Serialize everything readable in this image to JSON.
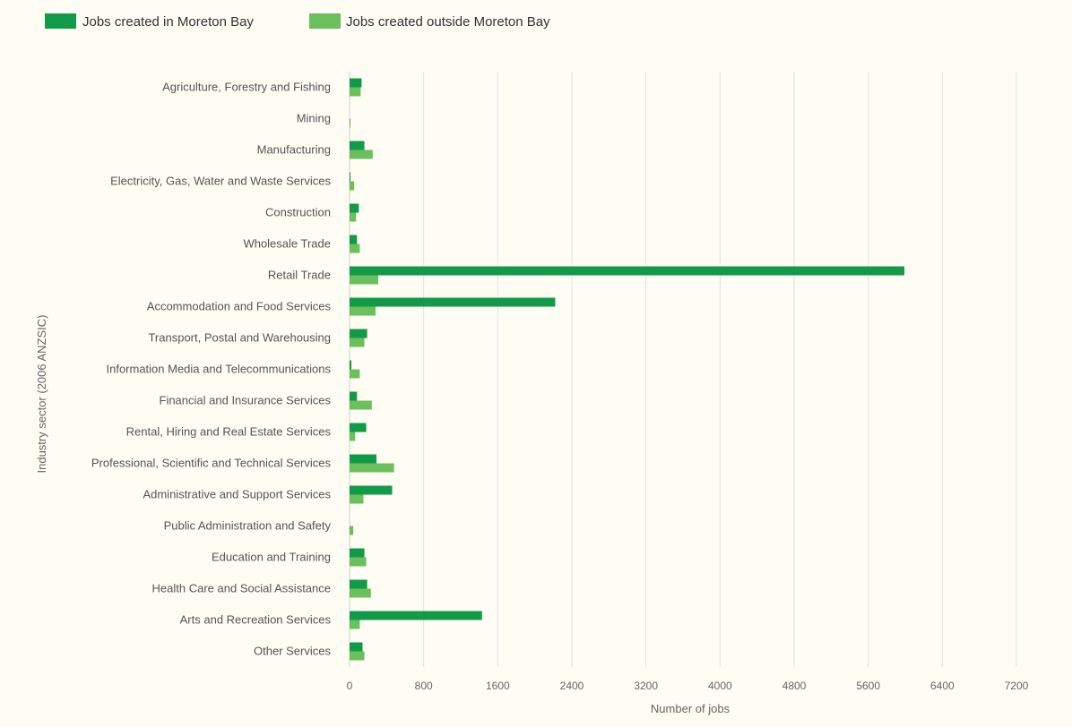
{
  "chart_data": {
    "type": "bar",
    "orientation": "horizontal",
    "xlabel": "Number of jobs",
    "ylabel": "Industry sector (2006 ANZSIC)",
    "xlim": [
      0,
      7200
    ],
    "xticks": [
      0,
      800,
      1600,
      2400,
      3200,
      4000,
      4800,
      5600,
      6400,
      7200
    ],
    "grid": true,
    "legend_position": "top-left",
    "categories": [
      "Agriculture, Forestry and Fishing",
      "Mining",
      "Manufacturing",
      "Electricity, Gas, Water and Waste Services",
      "Construction",
      "Wholesale Trade",
      "Retail Trade",
      "Accommodation and Food Services",
      "Transport, Postal and Warehousing",
      "Information Media and Telecommunications",
      "Financial and Insurance Services",
      "Rental, Hiring and Real Estate Services",
      "Professional, Scientific and Technical Services",
      "Administrative and Support Services",
      "Public Administration and Safety",
      "Education and Training",
      "Health Care and Social Assistance",
      "Arts and Recreation Services",
      "Other Services"
    ],
    "series": [
      {
        "name": "Jobs created in Moreton Bay",
        "color": "#119a48",
        "values": [
          130,
          0,
          160,
          10,
          100,
          80,
          5990,
          2220,
          190,
          20,
          80,
          180,
          290,
          460,
          0,
          160,
          190,
          1430,
          140
        ]
      },
      {
        "name": "Jobs created outside Moreton Bay",
        "color": "#6bbf5c",
        "values": [
          120,
          10,
          250,
          50,
          70,
          110,
          310,
          280,
          160,
          110,
          240,
          60,
          480,
          150,
          40,
          180,
          230,
          110,
          160
        ]
      }
    ]
  }
}
